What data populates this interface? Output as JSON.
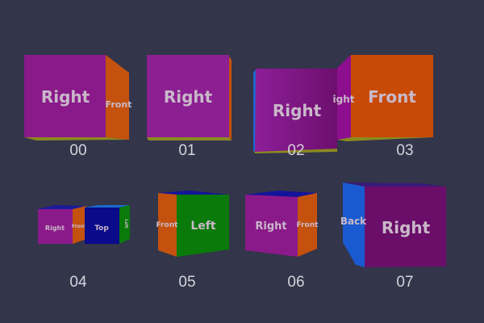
{
  "colors": {
    "background": "#33354a",
    "right_face": "#8a1a8a",
    "front_face": "#c94f0a",
    "left_face": "#0a7a0a",
    "top_face": "#0a0a8a",
    "back_face": "#1a5ad0",
    "bottom_face": "#8a8a20"
  },
  "cubes": [
    {
      "caption": "00",
      "faces": [
        "Right",
        "Front"
      ]
    },
    {
      "caption": "01",
      "faces": [
        "Right"
      ]
    },
    {
      "caption": "02",
      "faces": [
        "Right"
      ]
    },
    {
      "caption": "03",
      "faces": [
        "ight",
        "Front"
      ]
    },
    {
      "caption": "04",
      "faces": [
        "Right",
        "Front",
        "Top",
        "Left"
      ]
    },
    {
      "caption": "05",
      "faces": [
        "Front",
        "Left"
      ]
    },
    {
      "caption": "06",
      "faces": [
        "Right",
        "Front"
      ]
    },
    {
      "caption": "07",
      "faces": [
        "Back",
        "Right"
      ]
    }
  ]
}
